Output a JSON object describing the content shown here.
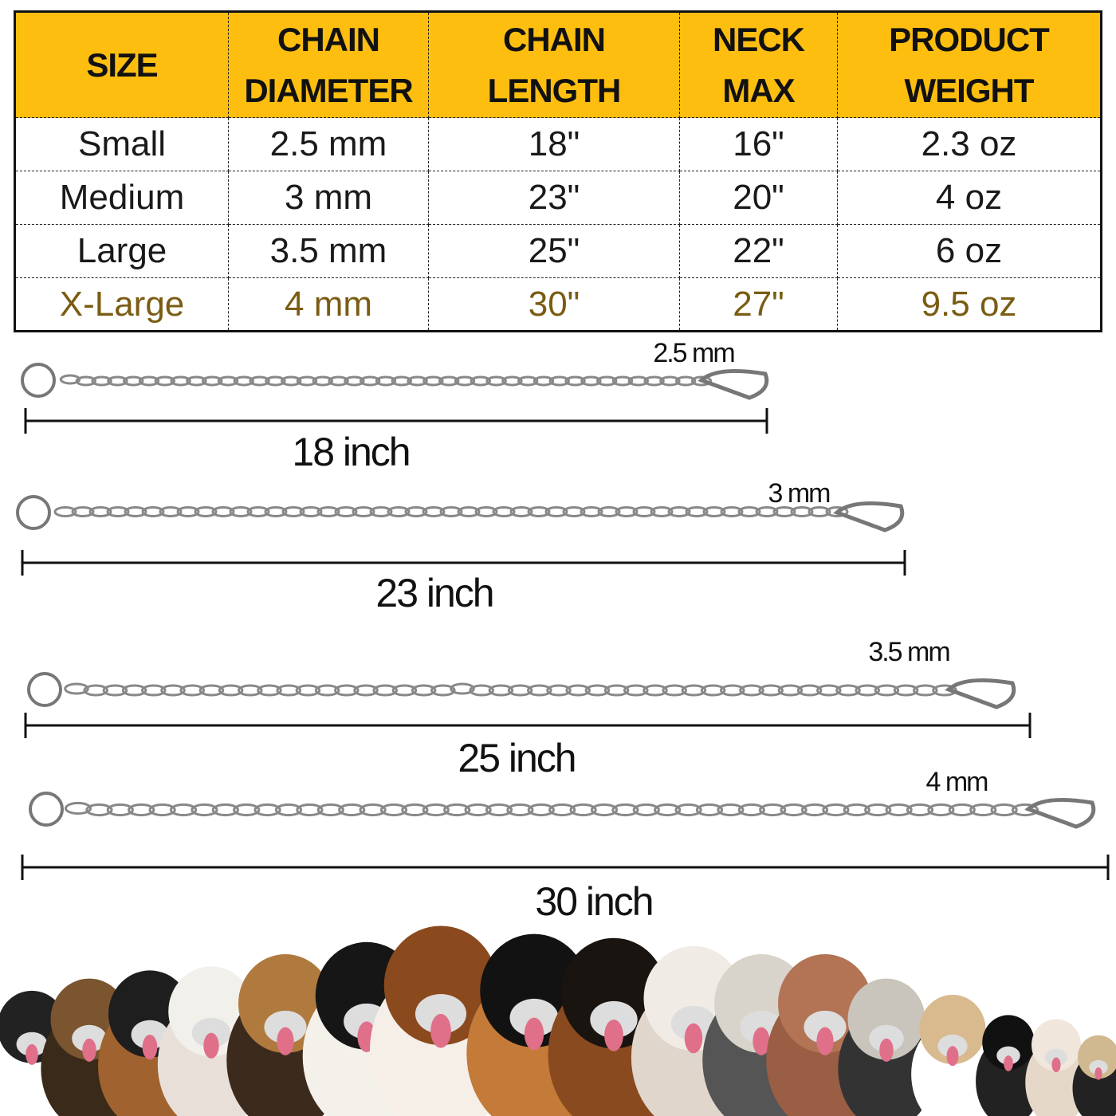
{
  "table": {
    "headers": [
      [
        "SIZE"
      ],
      [
        "CHAIN",
        "DIAMETER"
      ],
      [
        "CHAIN",
        "LENGTH"
      ],
      [
        "NECK",
        "MAX"
      ],
      [
        "PRODUCT",
        "WEIGHT"
      ]
    ],
    "rows": [
      [
        "Small",
        "2.5 mm",
        "18\"",
        "16\"",
        "2.3 oz"
      ],
      [
        "Medium",
        "3 mm",
        "23\"",
        "20\"",
        "4 oz"
      ],
      [
        "Large",
        "3.5 mm",
        "25\"",
        "22\"",
        "6 oz"
      ],
      [
        "X-Large",
        "4 mm",
        "30\"",
        "27\"",
        "9.5 oz"
      ]
    ],
    "header_color": "#fdbe0f",
    "highlight_row_color": "#7a5c12"
  },
  "chains": [
    {
      "length_label": "18 inch",
      "diameter_label": "2.5 mm"
    },
    {
      "length_label": "23 inch",
      "diameter_label": "3 mm"
    },
    {
      "length_label": "25 inch",
      "diameter_label": "3.5 mm"
    },
    {
      "length_label": "30 inch",
      "diameter_label": "4 mm"
    }
  ]
}
